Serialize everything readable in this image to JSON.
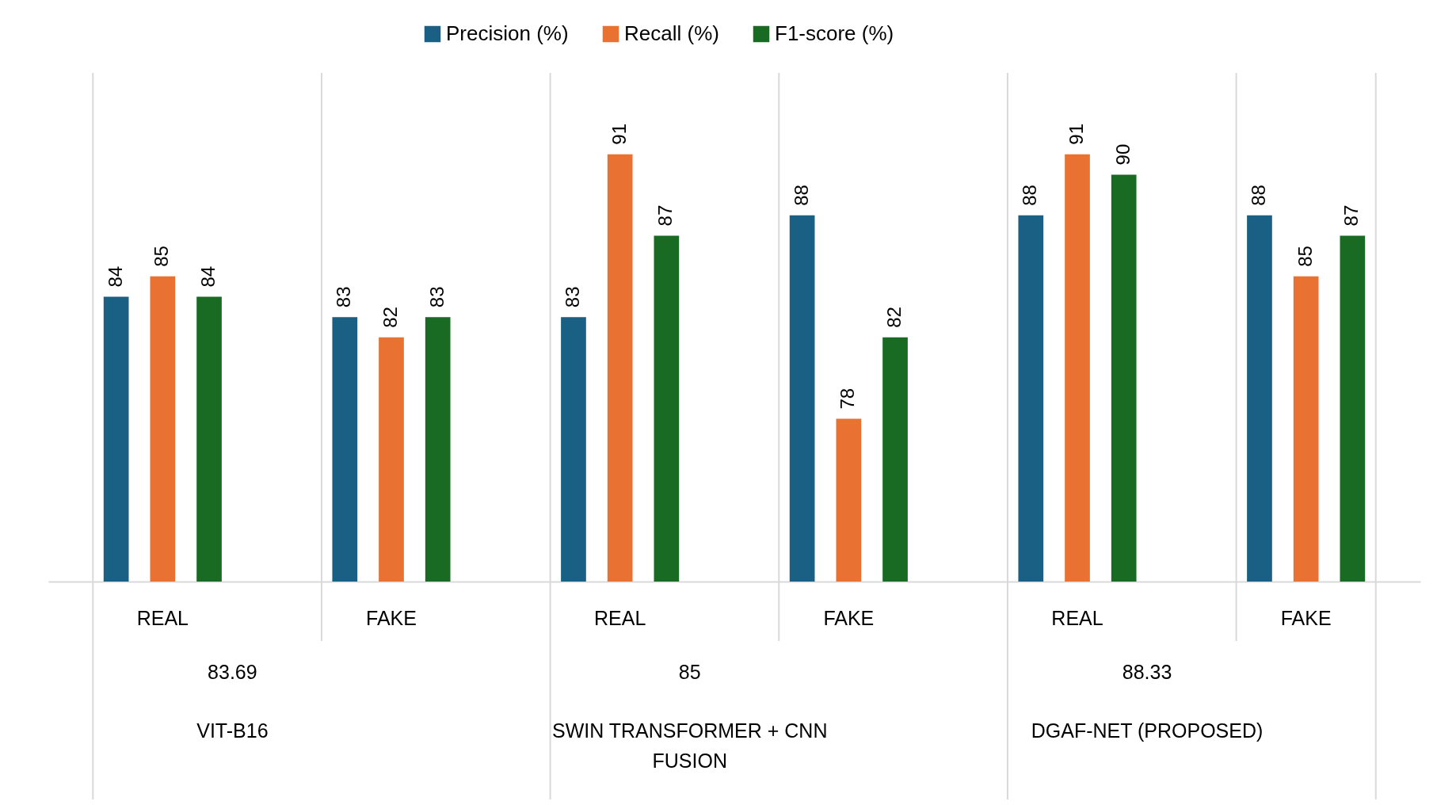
{
  "chart_data": {
    "type": "bar",
    "categories": [
      "REAL",
      "FAKE",
      "REAL",
      "FAKE",
      "REAL",
      "FAKE"
    ],
    "series": [
      {
        "name": "Precision (%)",
        "color": "#1a6084",
        "values": [
          84,
          83,
          83,
          88,
          88,
          88
        ]
      },
      {
        "name": "Recall (%)",
        "color": "#e97132",
        "values": [
          85,
          82,
          91,
          78,
          91,
          85
        ]
      },
      {
        "name": "F1-score (%)",
        "color": "#196b24",
        "values": [
          84,
          83,
          87,
          82,
          90,
          87
        ]
      }
    ],
    "ylim": [
      70,
      95
    ],
    "data_labels": true,
    "legend": "top",
    "annotations": [
      "83.69",
      "VIT-B16",
      "85",
      "SWIN TRANSFORMER + CNN FUSION",
      "88.33",
      "DGAF-NET (PROPOSED)"
    ]
  }
}
